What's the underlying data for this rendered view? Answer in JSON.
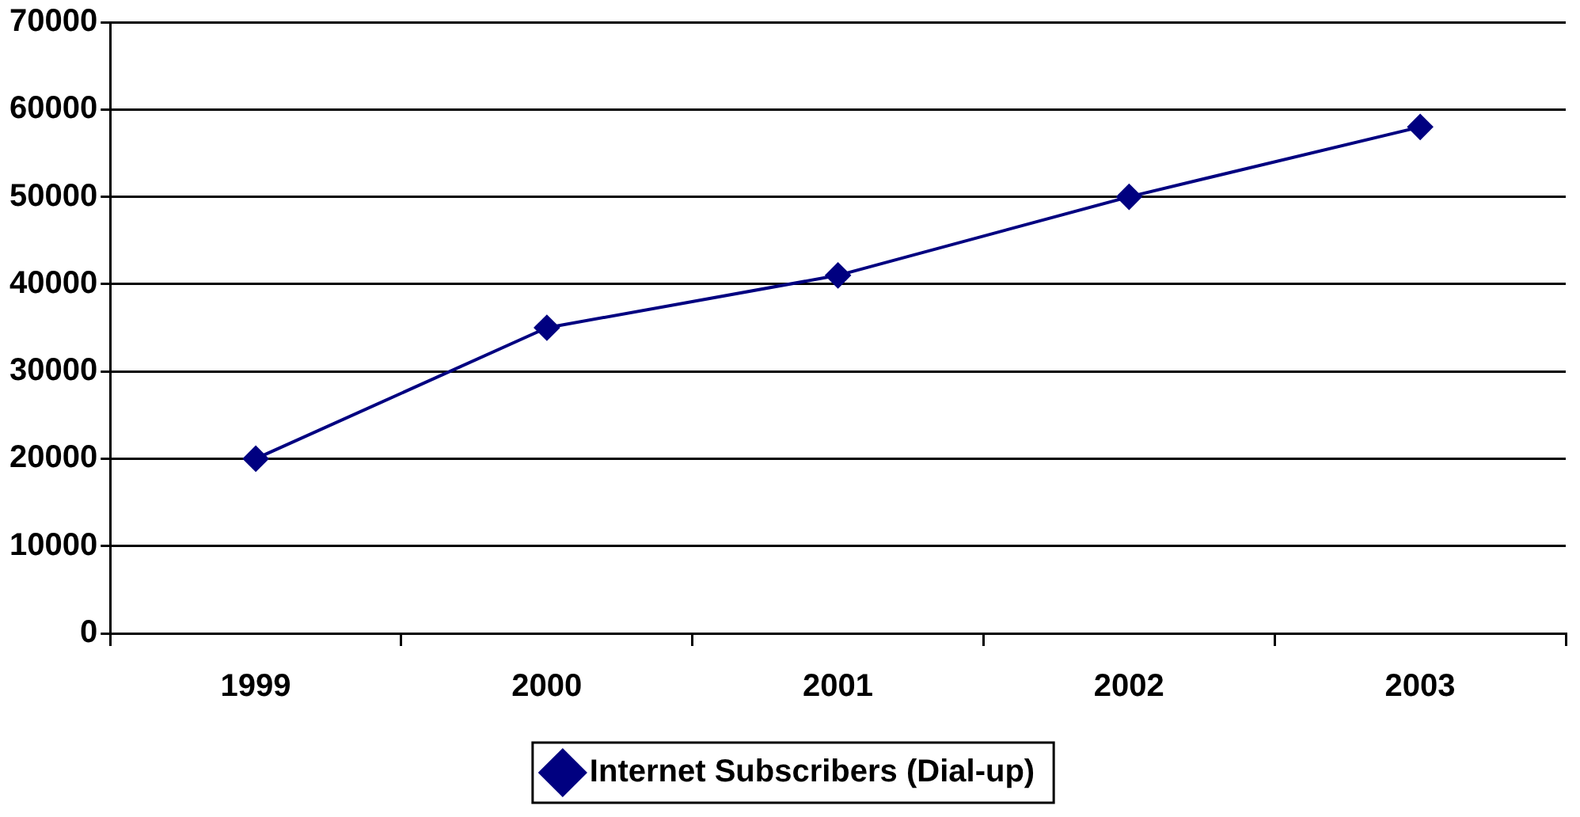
{
  "chart_data": {
    "type": "line",
    "categories": [
      "1999",
      "2000",
      "2001",
      "2002",
      "2003"
    ],
    "series": [
      {
        "name": "Internet Subscribers (Dial-up)",
        "color": "#000080",
        "values": [
          20000,
          35000,
          41000,
          50000,
          58000
        ]
      }
    ],
    "ylim": [
      0,
      70000
    ],
    "yticks": [
      0,
      10000,
      20000,
      30000,
      40000,
      50000,
      60000,
      70000
    ],
    "grid": "y",
    "legend": "bottom",
    "marker": "diamond",
    "line_style": "solid"
  }
}
